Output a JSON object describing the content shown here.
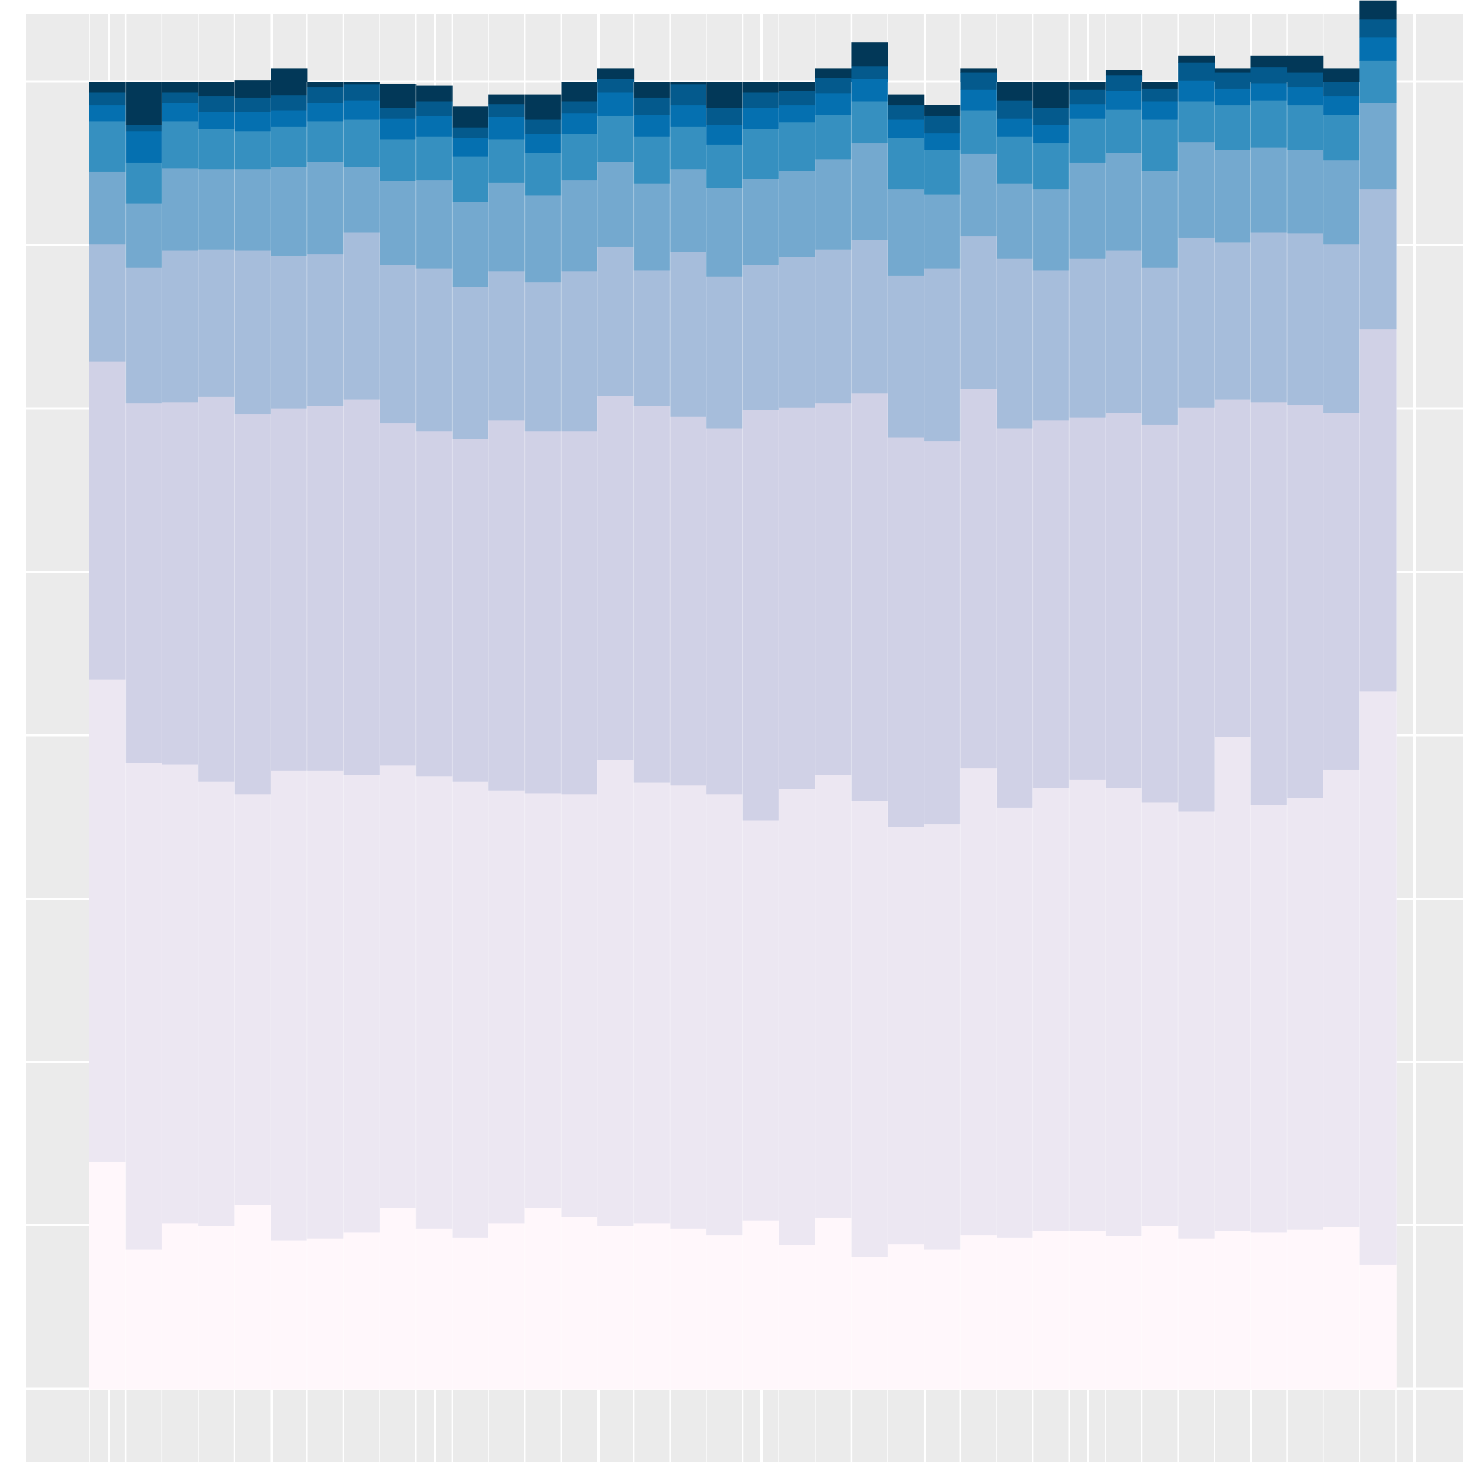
{
  "chart_data": {
    "type": "bar",
    "stacked": true,
    "normalized": true,
    "title": "",
    "xlabel": "",
    "ylabel": "",
    "ylim": [
      0,
      1
    ],
    "grid": true,
    "legend": "none",
    "bin_count": 36,
    "series": [
      {
        "colour": "#fff7fb",
        "values": [
          0.174,
          0.107,
          0.127,
          0.125,
          0.141,
          0.114,
          0.115,
          0.12,
          0.139,
          0.123,
          0.116,
          0.127,
          0.139,
          0.132,
          0.125,
          0.127,
          0.123,
          0.118,
          0.129,
          0.11,
          0.131,
          0.101,
          0.111,
          0.107,
          0.118,
          0.116,
          0.121,
          0.121,
          0.117,
          0.125,
          0.115,
          0.121,
          0.12,
          0.122,
          0.124,
          0.095
        ]
      },
      {
        "colour": "#ece7f2",
        "values": [
          0.369,
          0.372,
          0.351,
          0.34,
          0.314,
          0.359,
          0.358,
          0.35,
          0.338,
          0.346,
          0.349,
          0.331,
          0.317,
          0.323,
          0.356,
          0.337,
          0.339,
          0.337,
          0.306,
          0.349,
          0.339,
          0.349,
          0.319,
          0.325,
          0.357,
          0.329,
          0.339,
          0.345,
          0.343,
          0.324,
          0.327,
          0.378,
          0.327,
          0.33,
          0.35,
          0.439
        ]
      },
      {
        "colour": "#d0d1e6",
        "values": [
          0.243,
          0.275,
          0.277,
          0.294,
          0.291,
          0.277,
          0.279,
          0.287,
          0.262,
          0.264,
          0.262,
          0.283,
          0.277,
          0.278,
          0.279,
          0.288,
          0.282,
          0.28,
          0.314,
          0.292,
          0.284,
          0.312,
          0.298,
          0.293,
          0.29,
          0.29,
          0.281,
          0.277,
          0.287,
          0.289,
          0.309,
          0.258,
          0.308,
          0.301,
          0.273,
          0.277
        ]
      },
      {
        "colour": "#a6bddb",
        "values": [
          0.09,
          0.104,
          0.116,
          0.113,
          0.125,
          0.117,
          0.116,
          0.128,
          0.121,
          0.124,
          0.116,
          0.114,
          0.114,
          0.122,
          0.114,
          0.104,
          0.126,
          0.116,
          0.111,
          0.115,
          0.118,
          0.117,
          0.124,
          0.132,
          0.117,
          0.13,
          0.115,
          0.122,
          0.124,
          0.12,
          0.13,
          0.12,
          0.13,
          0.131,
          0.129,
          0.107
        ]
      },
      {
        "colour": "#74a9cf",
        "values": [
          0.055,
          0.049,
          0.063,
          0.061,
          0.062,
          0.068,
          0.071,
          0.05,
          0.064,
          0.068,
          0.065,
          0.068,
          0.066,
          0.07,
          0.065,
          0.066,
          0.063,
          0.068,
          0.066,
          0.066,
          0.069,
          0.074,
          0.066,
          0.057,
          0.063,
          0.057,
          0.062,
          0.073,
          0.075,
          0.074,
          0.073,
          0.071,
          0.065,
          0.064,
          0.064,
          0.066
        ]
      },
      {
        "colour": "#3690c0",
        "values": [
          0.039,
          0.031,
          0.036,
          0.031,
          0.029,
          0.031,
          0.031,
          0.036,
          0.032,
          0.033,
          0.035,
          0.033,
          0.033,
          0.035,
          0.035,
          0.036,
          0.033,
          0.033,
          0.038,
          0.037,
          0.034,
          0.032,
          0.039,
          0.034,
          0.033,
          0.036,
          0.035,
          0.034,
          0.033,
          0.039,
          0.031,
          0.034,
          0.036,
          0.034,
          0.035,
          0.032
        ]
      },
      {
        "colour": "#0570b0",
        "values": [
          0.012,
          0.024,
          0.014,
          0.013,
          0.015,
          0.012,
          0.014,
          0.015,
          0.016,
          0.016,
          0.014,
          0.017,
          0.014,
          0.016,
          0.018,
          0.017,
          0.016,
          0.015,
          0.016,
          0.013,
          0.016,
          0.017,
          0.014,
          0.013,
          0.016,
          0.014,
          0.014,
          0.011,
          0.014,
          0.014,
          0.016,
          0.013,
          0.013,
          0.014,
          0.014,
          0.018
        ]
      },
      {
        "colour": "#045a8d",
        "values": [
          0.01,
          0.005,
          0.008,
          0.012,
          0.011,
          0.012,
          0.012,
          0.012,
          0.008,
          0.011,
          0.008,
          0.01,
          0.011,
          0.009,
          0.01,
          0.013,
          0.016,
          0.013,
          0.012,
          0.011,
          0.012,
          0.01,
          0.011,
          0.013,
          0.013,
          0.014,
          0.013,
          0.011,
          0.012,
          0.01,
          0.014,
          0.012,
          0.012,
          0.011,
          0.011,
          0.014
        ]
      },
      {
        "colour": "#023858",
        "values": [
          0.008,
          0.033,
          0.008,
          0.011,
          0.013,
          0.02,
          0.004,
          0.002,
          0.018,
          0.012,
          0.016,
          0.007,
          0.019,
          0.015,
          0.008,
          0.012,
          0.002,
          0.02,
          0.008,
          0.007,
          0.007,
          0.018,
          0.008,
          0.008,
          0.003,
          0.014,
          0.02,
          0.006,
          0.004,
          0.005,
          0.005,
          0.003,
          0.009,
          0.013,
          0.01,
          0.014
        ]
      }
    ]
  }
}
